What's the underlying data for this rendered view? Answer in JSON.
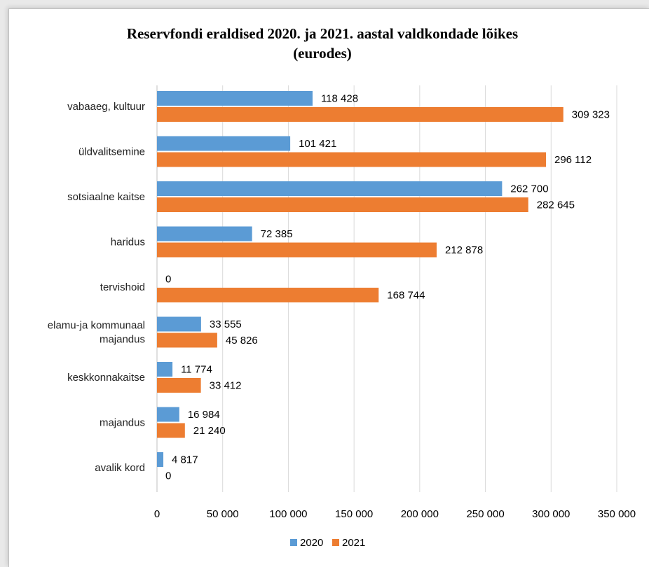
{
  "chart_data": {
    "type": "bar",
    "orientation": "horizontal",
    "title_line1": "Reservfondi eraldised 2020. ja 2021. aastal valdkondade  lõikes",
    "title_line2": "(eurodes)",
    "categories": [
      [
        "vabaaeg, kultuur"
      ],
      [
        "üldvalitsemine"
      ],
      [
        "sotsiaalne kaitse"
      ],
      [
        "haridus"
      ],
      [
        "tervishoid"
      ],
      [
        "elamu-ja kommunaal",
        "majandus"
      ],
      [
        "keskkonnakaitse"
      ],
      [
        "majandus"
      ],
      [
        "avalik kord"
      ]
    ],
    "series": [
      {
        "name": "2020",
        "color": "#5b9bd5",
        "values": [
          118428,
          101421,
          262700,
          72385,
          0,
          33555,
          11774,
          16984,
          4817
        ],
        "labels": [
          "118 428",
          "101 421",
          "262 700",
          "72 385",
          "0",
          "33 555",
          "11 774",
          "16 984",
          "4 817"
        ]
      },
      {
        "name": "2021",
        "color": "#ed7d31",
        "values": [
          309323,
          296112,
          282645,
          212878,
          168744,
          45826,
          33412,
          21240,
          0
        ],
        "labels": [
          "309 323",
          "296 112",
          "282 645",
          "212 878",
          "168 744",
          "45 826",
          "33 412",
          "21 240",
          "0"
        ]
      }
    ],
    "xlim": [
      0,
      350000
    ],
    "xticks": [
      0,
      50000,
      100000,
      150000,
      200000,
      250000,
      300000,
      350000
    ],
    "xtick_labels": [
      "0",
      "50 000",
      "100 000",
      "150 000",
      "200 000",
      "250 000",
      "300 000",
      "350 000"
    ],
    "grid": "vertical",
    "legend_position": "bottom"
  }
}
